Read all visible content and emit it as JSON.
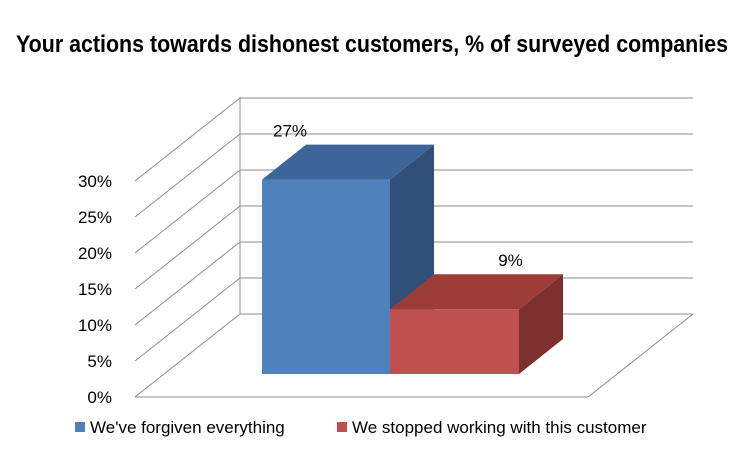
{
  "chart_data": {
    "type": "bar",
    "title": "Your actions towards dishonest customers, % of surveyed companies",
    "xlabel": "",
    "ylabel": "",
    "ylim": [
      0,
      30
    ],
    "yticks": [
      "0%",
      "5%",
      "10%",
      "15%",
      "20%",
      "25%",
      "30%"
    ],
    "ytick_values": [
      0,
      5,
      10,
      15,
      20,
      25,
      30
    ],
    "grid": true,
    "legend_position": "bottom",
    "series": [
      {
        "name": "We've forgiven everything",
        "value": 27,
        "label": "27%",
        "color": "#4f81bd",
        "top_color": "#3d6599",
        "side_color": "#30507a"
      },
      {
        "name": "We stopped working with this customer",
        "value": 9,
        "label": "9%",
        "color": "#c0504d",
        "top_color": "#9c3d3a",
        "side_color": "#7d302e"
      }
    ]
  }
}
